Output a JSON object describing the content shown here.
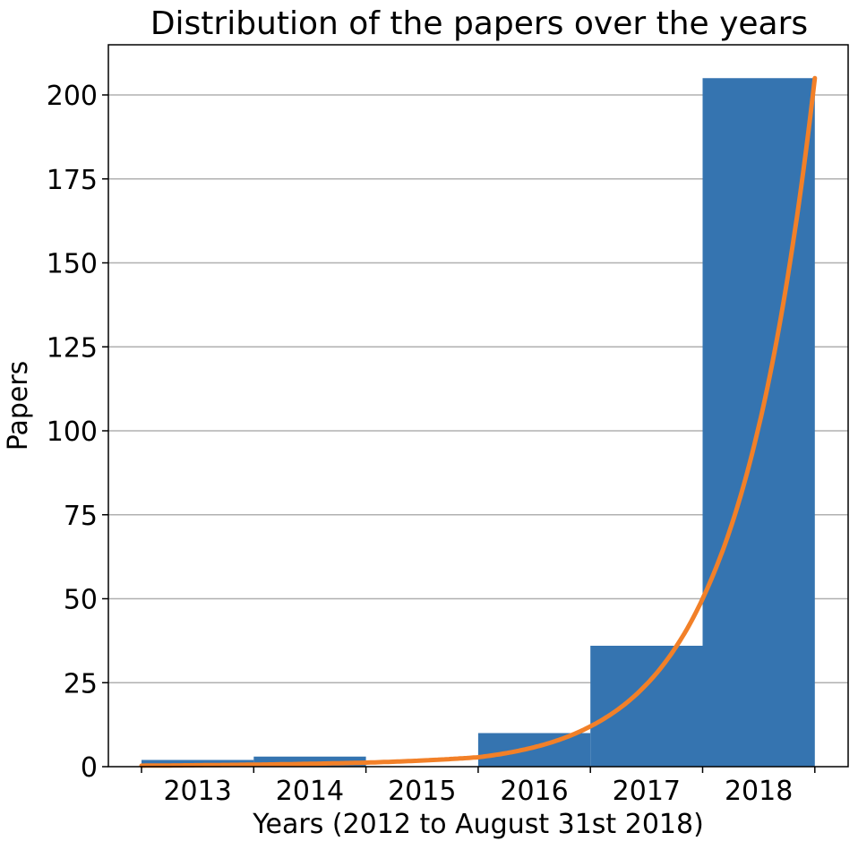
{
  "chart_data": {
    "type": "bar",
    "title": "Distribution of the papers over the years",
    "xlabel": "Years (2012 to August 31st 2018)",
    "ylabel": "Papers",
    "categories": [
      "2013",
      "2014",
      "2015",
      "2016",
      "2017",
      "2018"
    ],
    "values": [
      2,
      3,
      0,
      10,
      36,
      205
    ],
    "trend_line": {
      "type": "exponential fit",
      "points": [
        {
          "x": "2013",
          "y": 0.3
        },
        {
          "x": "2014",
          "y": 0.6
        },
        {
          "x": "2015",
          "y": 1.2
        },
        {
          "x": "2016",
          "y": 2.8
        },
        {
          "x": "2017",
          "y": 12
        },
        {
          "x": "2018",
          "y": 50
        },
        {
          "x": "2018 (end)",
          "y": 205
        }
      ],
      "color": "#f28028"
    },
    "ylim": [
      0,
      215
    ],
    "yticks": [
      0,
      25,
      50,
      75,
      100,
      125,
      150,
      175,
      200
    ],
    "grid": "horizontal",
    "bar_color": "#3574b0"
  }
}
